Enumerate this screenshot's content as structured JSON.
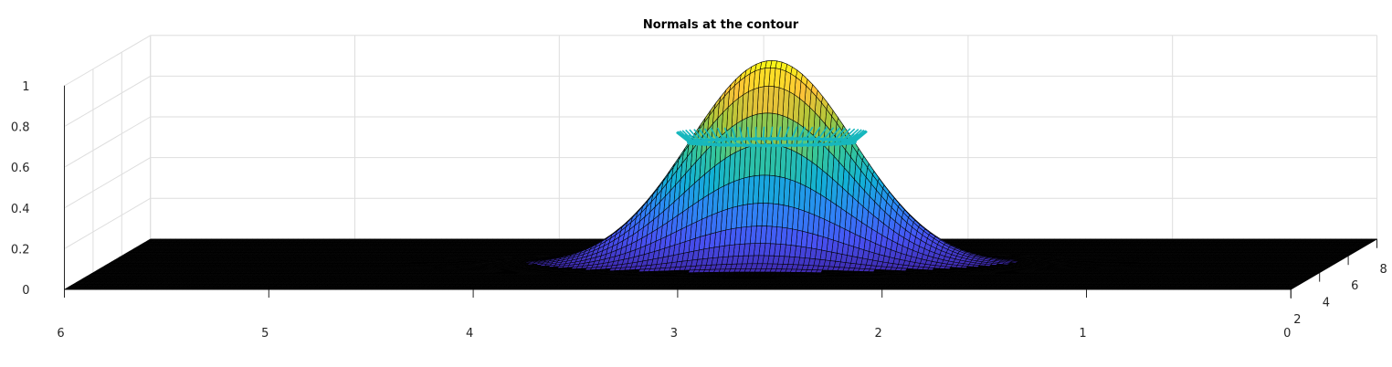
{
  "chart_data": {
    "type": "surface",
    "title": "Normals at the contour",
    "function": "z = exp(-((x - 2.75)^2 + (y - 5)^2) / 0.32)",
    "x_ticks": [
      "6",
      "5",
      "4",
      "3",
      "2",
      "1",
      "0"
    ],
    "y_ticks": [
      "2",
      "4",
      "6",
      "8"
    ],
    "z_ticks": [
      "0",
      "0.2",
      "0.4",
      "0.6",
      "0.8",
      "1"
    ],
    "xlim": [
      0,
      6
    ],
    "ylim": [
      2,
      8
    ],
    "zlim": [
      0,
      1
    ],
    "peak": {
      "x": 2.75,
      "y": 5,
      "z": 1
    },
    "contour_level": 0.6,
    "colormap": "parula",
    "mesh_color": "#000000",
    "normal_color": "#17b7bd",
    "grid": true
  }
}
